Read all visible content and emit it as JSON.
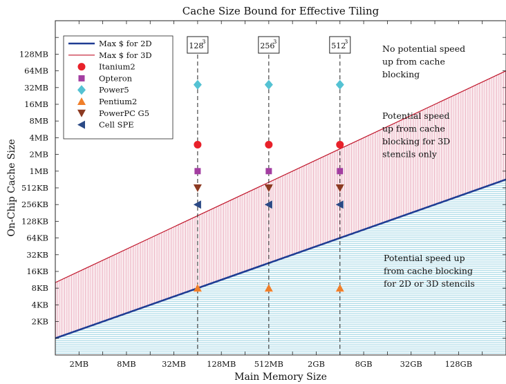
{
  "chart_data": {
    "type": "line",
    "title": "Cache Size Bound for Effective Tiling",
    "xlabel": "Main Memory Size",
    "ylabel": "On-Chip Cache Size",
    "x_scale": "log2",
    "y_scale": "log2",
    "x_unit": "bytes",
    "y_unit": "bytes",
    "xlim": [
      "1MB",
      "512GB"
    ],
    "ylim": [
      "512B",
      "512MB"
    ],
    "x_ticks": [
      {
        "label": "2MB",
        "exp": 21
      },
      {
        "label": "8MB",
        "exp": 23
      },
      {
        "label": "32MB",
        "exp": 25
      },
      {
        "label": "128MB",
        "exp": 27
      },
      {
        "label": "512MB",
        "exp": 29
      },
      {
        "label": "2GB",
        "exp": 31
      },
      {
        "label": "8GB",
        "exp": 33
      },
      {
        "label": "32GB",
        "exp": 35
      },
      {
        "label": "128GB",
        "exp": 37
      }
    ],
    "y_ticks": [
      {
        "label": "2KB",
        "exp": 11
      },
      {
        "label": "4KB",
        "exp": 12
      },
      {
        "label": "8KB",
        "exp": 13
      },
      {
        "label": "16KB",
        "exp": 14
      },
      {
        "label": "32KB",
        "exp": 15
      },
      {
        "label": "64KB",
        "exp": 16
      },
      {
        "label": "128KB",
        "exp": 17
      },
      {
        "label": "256KB",
        "exp": 18
      },
      {
        "label": "512KB",
        "exp": 19
      },
      {
        "label": "1MB",
        "exp": 20
      },
      {
        "label": "2MB",
        "exp": 21
      },
      {
        "label": "4MB",
        "exp": 22
      },
      {
        "label": "8MB",
        "exp": 23
      },
      {
        "label": "16MB",
        "exp": 24
      },
      {
        "label": "32MB",
        "exp": 25
      },
      {
        "label": "64MB",
        "exp": 26
      },
      {
        "label": "128MB",
        "exp": 27
      }
    ],
    "lines": [
      {
        "name": "Max $ for 2D",
        "color": "#1f3c93",
        "width": 2.6,
        "relation": "cache = memory^(1/2)",
        "x_exp": [
          20,
          39
        ],
        "y_exp": [
          10,
          19.5
        ]
      },
      {
        "name": "Max $ for 3D",
        "color": "#c0152a",
        "width": 1.2,
        "relation": "cache = memory^(2/3)",
        "x_exp": [
          20,
          39
        ],
        "y_exp": [
          13.333,
          26
        ]
      }
    ],
    "problem_sizes": [
      {
        "label": "128",
        "sup": "3",
        "memory": "64MB",
        "x_exp": 26
      },
      {
        "label": "256",
        "sup": "3",
        "memory": "512MB",
        "x_exp": 29
      },
      {
        "label": "512",
        "sup": "3",
        "memory": "4GB",
        "x_exp": 32
      }
    ],
    "series": [
      {
        "name": "Itanium2",
        "marker": "circle",
        "color": "#e8212a",
        "cache": "3MB",
        "y_exp": 21.585
      },
      {
        "name": "Opteron",
        "marker": "square",
        "color": "#a33ea1",
        "cache": "1MB",
        "y_exp": 20
      },
      {
        "name": "Power5",
        "marker": "diamond",
        "color": "#54c2d3",
        "cache": "36MB",
        "y_exp": 25.17
      },
      {
        "name": "Pentium2",
        "marker": "triangle-up",
        "color": "#f07f2a",
        "cache": "8KB",
        "y_exp": 13
      },
      {
        "name": "PowerPC G5",
        "marker": "triangle-down",
        "color": "#8c3a22",
        "cache": "512KB",
        "y_exp": 19
      },
      {
        "name": "Cell SPE",
        "marker": "triangle-left",
        "color": "#2b4a86",
        "cache": "256KB",
        "y_exp": 18
      }
    ],
    "regions": [
      {
        "name": "no-speedup",
        "fill": "none",
        "text": [
          "No potential speed",
          "up from cache",
          "blocking"
        ]
      },
      {
        "name": "3d-only",
        "fill": "#d4587a",
        "hatch": "vertical",
        "text": [
          "Potential speed",
          "up from cache",
          "blocking for 3D",
          "stencils only"
        ]
      },
      {
        "name": "2d-3d",
        "fill": "#5ab6cf",
        "hatch": "horizontal",
        "text": [
          "Potential speed up",
          "from cache blocking",
          "for 2D or 3D stencils"
        ]
      }
    ],
    "legend_position": "top-left",
    "grid": false
  }
}
